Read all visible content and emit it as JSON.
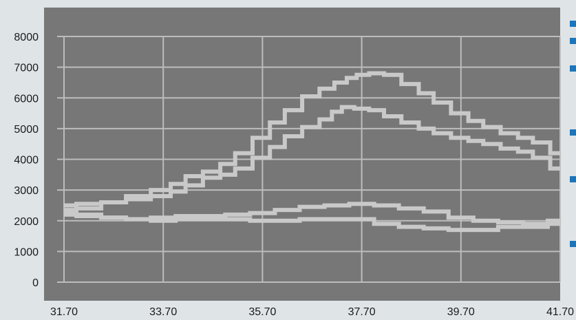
{
  "chart_data": {
    "type": "line",
    "title": "",
    "xlabel": "",
    "ylabel": "",
    "xlim": [
      31.7,
      41.7
    ],
    "ylim": [
      -400,
      8600
    ],
    "grid": true,
    "x_ticks": [
      "31.70",
      "33.70",
      "35.70",
      "37.70",
      "39.70",
      "41.70"
    ],
    "y_ticks": [
      "0",
      "1000",
      "2000",
      "3000",
      "4000",
      "5000",
      "6000",
      "7000",
      "8000"
    ],
    "x_tick_values": [
      31.7,
      33.7,
      35.7,
      37.7,
      39.7,
      41.7
    ],
    "y_tick_values": [
      0,
      1000,
      2000,
      3000,
      4000,
      5000,
      6000,
      7000,
      8000
    ],
    "colors": {
      "plot_background": "#777777",
      "page_background": "#dfe4e7",
      "grid": "#bdbdbd",
      "series": "#c9c9c9",
      "legend_marker": "#1b75bc",
      "tick_text": "#1a1a1a"
    },
    "legend_markers": 6,
    "series": [
      {
        "x": [
          31.7,
          32.2,
          32.7,
          33.2,
          33.7,
          34.0,
          34.3,
          34.7,
          35.0,
          35.3,
          35.7,
          36.0,
          36.3,
          36.7,
          37.0,
          37.3,
          37.5,
          37.7,
          38.0,
          38.3,
          38.7,
          39.0,
          39.3,
          39.7,
          40.0,
          40.3,
          40.7,
          41.0,
          41.3,
          41.7
        ],
        "y": [
          2300,
          2400,
          2600,
          2800,
          3000,
          3200,
          3450,
          3600,
          3850,
          4200,
          4700,
          5200,
          5600,
          6050,
          6300,
          6500,
          6650,
          6750,
          6800,
          6750,
          6450,
          6150,
          5850,
          5500,
          5250,
          5050,
          4850,
          4700,
          4550,
          4200
        ]
      },
      {
        "x": [
          31.7,
          32.2,
          32.7,
          33.2,
          33.7,
          34.0,
          34.3,
          34.7,
          35.0,
          35.3,
          35.7,
          36.0,
          36.3,
          36.7,
          37.0,
          37.2,
          37.4,
          37.7,
          38.0,
          38.3,
          38.7,
          39.0,
          39.3,
          39.7,
          40.0,
          40.3,
          40.7,
          41.0,
          41.3,
          41.7
        ],
        "y": [
          2500,
          2550,
          2600,
          2700,
          2800,
          2950,
          3150,
          3400,
          3500,
          3700,
          4050,
          4400,
          4750,
          5050,
          5300,
          5550,
          5700,
          5650,
          5600,
          5400,
          5200,
          5000,
          4850,
          4700,
          4600,
          4500,
          4350,
          4250,
          4050,
          3700
        ]
      },
      {
        "x": [
          31.7,
          32.2,
          32.7,
          33.2,
          33.7,
          34.2,
          34.7,
          35.2,
          35.7,
          36.2,
          36.7,
          37.2,
          37.7,
          38.2,
          38.7,
          39.2,
          39.7,
          40.2,
          40.7,
          41.2,
          41.7
        ],
        "y": [
          2200,
          2150,
          2100,
          2050,
          2100,
          2150,
          2150,
          2200,
          2250,
          2350,
          2450,
          2500,
          2550,
          2500,
          2400,
          2300,
          2100,
          2000,
          1950,
          1900,
          2000
        ]
      },
      {
        "x": [
          31.7,
          32.2,
          32.7,
          33.2,
          33.7,
          34.2,
          34.7,
          35.2,
          35.7,
          36.2,
          36.7,
          37.2,
          37.7,
          38.2,
          38.7,
          39.2,
          39.7,
          40.2,
          40.7,
          41.2,
          41.7
        ],
        "y": [
          2350,
          2200,
          2100,
          2050,
          2000,
          2050,
          2050,
          2050,
          2000,
          2000,
          2050,
          2050,
          2050,
          1900,
          1800,
          1750,
          1700,
          1700,
          1800,
          1800,
          1900
        ]
      }
    ]
  }
}
